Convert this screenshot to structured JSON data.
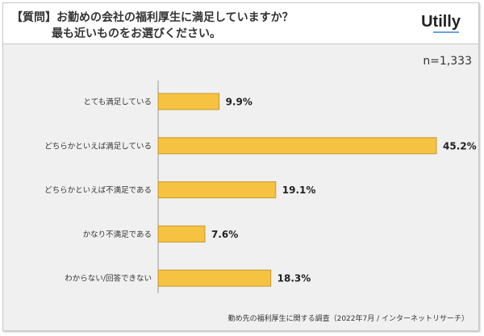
{
  "header": {
    "question_line1": "【質問】お勤めの会社の福利厚生に満足していますか？",
    "question_line2": "最も近いものをお選びください。",
    "logo": "Utilly"
  },
  "sample_size": "n=1,333",
  "source": "勤め先の福利厚生に関する調査（2022年7月 / インターネットリサーチ）",
  "colors": {
    "bar": "#f5c242",
    "bar_border": "#c79a2a"
  },
  "chart_data": {
    "type": "bar",
    "orientation": "horizontal",
    "categories": [
      "とても満足している",
      "どちらかといえば満足している",
      "どちらかといえば不満足である",
      "かなり不満足である",
      "わからない/回答できない"
    ],
    "values": [
      9.9,
      45.2,
      19.1,
      7.6,
      18.3
    ],
    "labels": [
      "9.9%",
      "45.2%",
      "19.1%",
      "7.6%",
      "18.3%"
    ],
    "unit": "%",
    "xlim": [
      0,
      50
    ],
    "grid": false
  }
}
